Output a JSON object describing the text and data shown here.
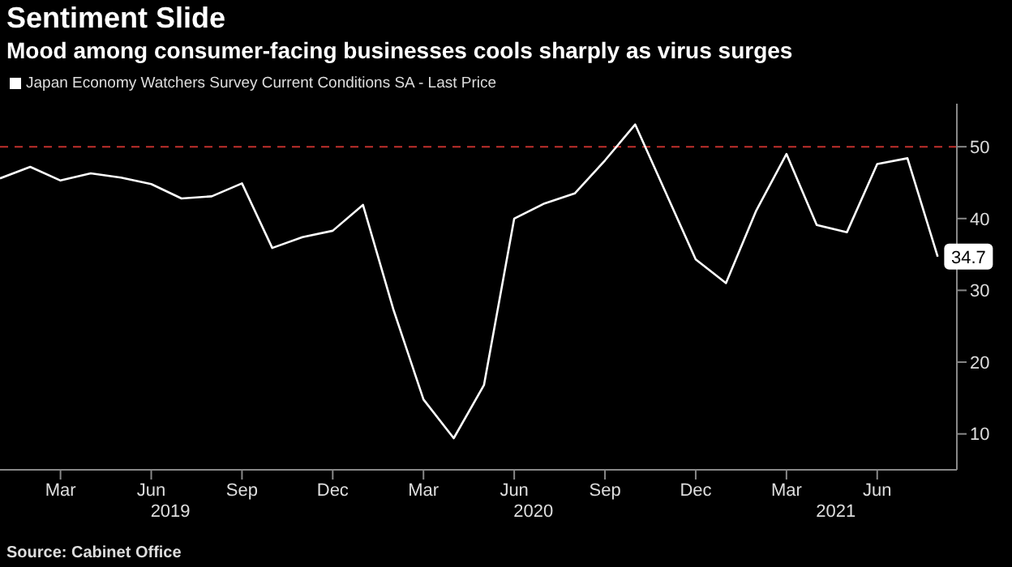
{
  "chart_data": {
    "type": "line",
    "title": "Sentiment Slide",
    "subtitle": "Mood among consumer-facing businesses cools sharply as virus surges",
    "x": [
      "2019-01",
      "2019-02",
      "2019-03",
      "2019-04",
      "2019-05",
      "2019-06",
      "2019-07",
      "2019-08",
      "2019-09",
      "2019-10",
      "2019-11",
      "2019-12",
      "2020-01",
      "2020-02",
      "2020-03",
      "2020-04",
      "2020-05",
      "2020-06",
      "2020-07",
      "2020-08",
      "2020-09",
      "2020-10",
      "2020-11",
      "2020-12",
      "2021-01",
      "2021-02",
      "2021-03",
      "2021-04",
      "2021-05",
      "2021-06",
      "2021-07",
      "2021-08"
    ],
    "series": [
      {
        "name": "Japan Economy Watchers Survey Current Conditions SA - Last Price",
        "color": "#ffffff",
        "values": [
          45.6,
          47.2,
          45.3,
          46.3,
          45.7,
          44.8,
          42.8,
          43.1,
          44.9,
          35.9,
          37.4,
          38.3,
          41.9,
          27.4,
          14.8,
          9.4,
          16.8,
          40.0,
          42.1,
          43.5,
          48.1,
          53.1,
          43.7,
          34.3,
          31.0,
          41.1,
          49.0,
          39.1,
          38.1,
          47.6,
          48.4,
          34.7
        ],
        "value_labels": [
          null,
          null,
          null,
          null,
          null,
          null,
          null,
          null,
          null,
          null,
          null,
          null,
          null,
          null,
          null,
          null,
          null,
          null,
          null,
          null,
          null,
          null,
          null,
          null,
          null,
          null,
          null,
          null,
          null,
          null,
          null,
          "34.7"
        ]
      }
    ],
    "xlim": [
      "2019-01",
      "2021-08-20"
    ],
    "xticks": [
      {
        "value": "2019-03",
        "label": "Mar"
      },
      {
        "value": "2019-06",
        "label": "Jun"
      },
      {
        "value": "2019-09",
        "label": "Sep"
      },
      {
        "value": "2019-12",
        "label": "Dec"
      },
      {
        "value": "2020-03",
        "label": "Mar"
      },
      {
        "value": "2020-06",
        "label": "Jun"
      },
      {
        "value": "2020-09",
        "label": "Sep"
      },
      {
        "value": "2020-12",
        "label": "Dec"
      },
      {
        "value": "2021-03",
        "label": "Mar"
      },
      {
        "value": "2021-06",
        "label": "Jun"
      }
    ],
    "ylim": [
      5,
      56
    ],
    "yticks": [
      10,
      20,
      30,
      40,
      50
    ],
    "ref_lines": [
      {
        "axis": "y",
        "value": 50,
        "color": "#c0302c",
        "line_style": "dashed"
      }
    ],
    "annotations": [
      "2019",
      "2020",
      "2021",
      "Source: Cabinet Office"
    ],
    "legend": "top left",
    "marker": "none",
    "line_style": "solid"
  }
}
